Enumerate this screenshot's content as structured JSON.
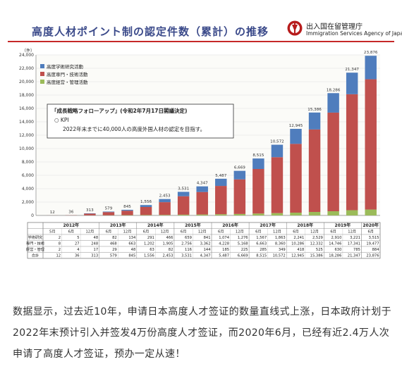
{
  "header": {
    "title": "高度人材ポイント制の認定件数（累計）の推移",
    "agency_ja": "出入国在留管理庁",
    "agency_en": "Immigration Services Agency of Japan"
  },
  "chart_data": {
    "type": "bar",
    "stacked": true,
    "yunit": "（件）",
    "ylim": [
      0,
      24000
    ],
    "yticks": [
      0,
      2000,
      4000,
      6000,
      8000,
      10000,
      12000,
      14000,
      16000,
      18000,
      20000,
      22000,
      24000
    ],
    "grid": true,
    "legend_position": "top-left",
    "year_groups": [
      {
        "label": "2012年",
        "span": 3
      },
      {
        "label": "2013年",
        "span": 2
      },
      {
        "label": "2014年",
        "span": 2
      },
      {
        "label": "2015年",
        "span": 2
      },
      {
        "label": "2016年",
        "span": 2
      },
      {
        "label": "2017年",
        "span": 2
      },
      {
        "label": "2018年",
        "span": 2
      },
      {
        "label": "2019年",
        "span": 2
      },
      {
        "label": "2020年",
        "span": 1
      }
    ],
    "categories": [
      "5月",
      "6月",
      "12月",
      "6月",
      "12月",
      "6月",
      "12月",
      "6月",
      "12月",
      "6月",
      "12月",
      "6月",
      "12月",
      "6月",
      "12月",
      "6月",
      "12月",
      "6月"
    ],
    "series": [
      {
        "name": "高度学術研究活動",
        "color": "#4f7dbd",
        "values": [
          2,
          5,
          48,
          82,
          134,
          291,
          466,
          659,
          841,
          1074,
          1276,
          1567,
          1863,
          2241,
          2529,
          2910,
          3221,
          3515
        ],
        "display": [
          "2",
          "5",
          "48",
          "82",
          "134",
          "291",
          "466",
          "659",
          "841",
          "1,074",
          "1,276",
          "1,567",
          "1,863",
          "2,241",
          "2,529",
          "2,910",
          "3,221",
          "3,515"
        ]
      },
      {
        "name": "高度専門・技術活動",
        "color": "#c0504d",
        "values": [
          8,
          27,
          248,
          468,
          663,
          1202,
          1905,
          2756,
          3362,
          4228,
          5168,
          6663,
          8360,
          10286,
          12332,
          14746,
          17341,
          19477
        ],
        "display": [
          "8",
          "27",
          "248",
          "468",
          "663",
          "1,202",
          "1,905",
          "2,756",
          "3,362",
          "4,228",
          "5,168",
          "6,663",
          "8,360",
          "10,286",
          "12,332",
          "14,746",
          "17,341",
          "19,477"
        ]
      },
      {
        "name": "高度経営・管理活動",
        "color": "#9bbb59",
        "values": [
          2,
          4,
          17,
          29,
          48,
          63,
          82,
          116,
          144,
          185,
          225,
          285,
          349,
          418,
          525,
          630,
          785,
          884
        ],
        "display": [
          "2",
          "4",
          "17",
          "29",
          "48",
          "63",
          "82",
          "116",
          "144",
          "185",
          "225",
          "285",
          "349",
          "418",
          "525",
          "630",
          "785",
          "884"
        ]
      }
    ],
    "totals": [
      12,
      36,
      313,
      579,
      845,
      1556,
      2453,
      3531,
      4347,
      5487,
      6669,
      8515,
      10572,
      12945,
      15386,
      18286,
      21347,
      23876
    ],
    "totals_display": [
      "12",
      "36",
      "313",
      "579",
      "845",
      "1,556",
      "2,453",
      "3,531",
      "4,347",
      "5,487",
      "6,669",
      "8,515",
      "10,572",
      "12,945",
      "15,386",
      "18,286",
      "21,347",
      "23,876"
    ],
    "table_row_labels": [
      "学術研究",
      "専門・技術",
      "経営・管理",
      "合計"
    ],
    "annotation": {
      "heading": "「成長戦略フォローアップ」(令和2年7月17日閣議決定)",
      "kpi": "○ KPI",
      "body": "2022年末までに40,000人の高度外国人材の認定を目指す。"
    }
  },
  "caption": "数据显示，过去近10年，申请日本高度人才签证的数量直线式上涨，日本政府计划于2022年末预计引入并签发4万份高度人才签证，而2020年6月，已经有近2.4万人次申请了高度人才签证，预办一定从速！"
}
